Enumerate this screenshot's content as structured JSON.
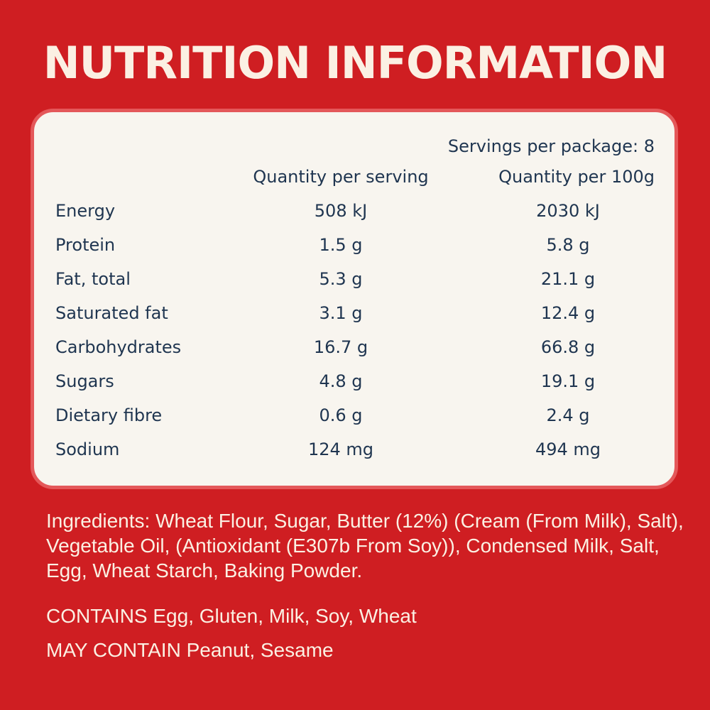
{
  "header": {
    "title": "NUTRITION INFORMATION"
  },
  "table": {
    "servings": "Servings per package: 8",
    "columns": [
      "Quantity per serving",
      "Quantity per 100g"
    ],
    "rows": [
      [
        "Energy",
        "508 kJ",
        "2030 kJ"
      ],
      [
        "Protein",
        "1.5 g",
        "5.8 g"
      ],
      [
        "Fat, total",
        "5.3 g",
        "21.1 g"
      ],
      [
        "Saturated fat",
        "3.1 g",
        "12.4 g"
      ],
      [
        "Carbohydrates",
        "16.7 g",
        "66.8 g"
      ],
      [
        "Sugars",
        "4.8 g",
        "19.1 g"
      ],
      [
        "Dietary fibre",
        "0.6 g",
        "2.4 g"
      ],
      [
        "Sodium",
        "124 mg",
        "494 mg"
      ]
    ]
  },
  "ingredients": "Ingredients: Wheat Flour, Sugar, Butter (12%) (Cream (From Milk), Salt), Vegetable Oil, (Antioxidant (E307b From Soy)), Condensed Milk, Salt, Egg, Wheat Starch, Baking Powder.",
  "allergens": [
    "CONTAINS Egg, Gluten, Milk, Soy, Wheat",
    "MAY CONTAIN Peanut, Sesame"
  ]
}
